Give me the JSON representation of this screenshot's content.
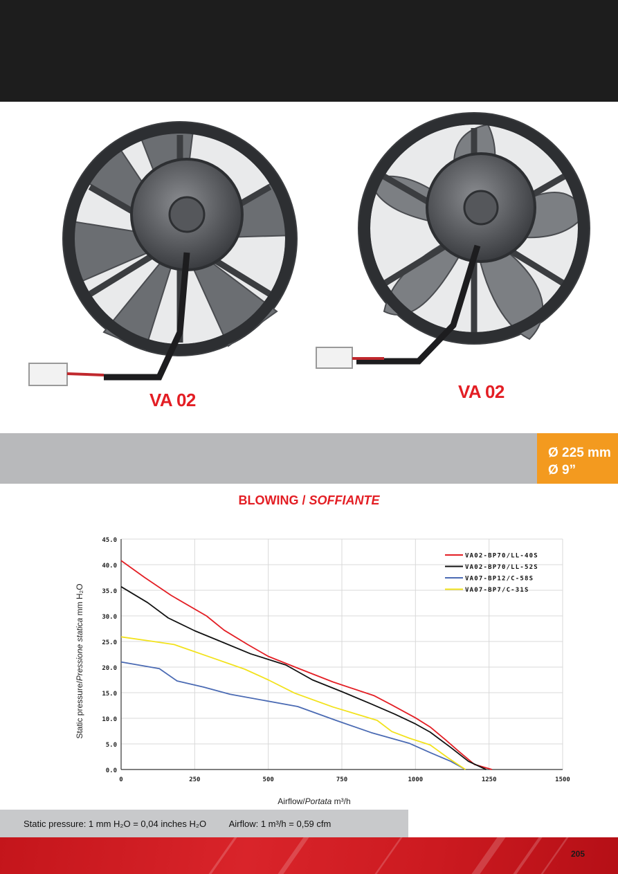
{
  "models": {
    "left": "VA 02",
    "right": "VA 02"
  },
  "size": {
    "mm": "Ø 225 mm",
    "inch": "Ø 9”"
  },
  "section_title": {
    "main": "BLOWING / ",
    "italic": "SOFFIANTE"
  },
  "conversions": {
    "pressure": "Static pressure: 1 mm H₂O = 0,04 inches H₂O",
    "airflow": "Airflow: 1 m³/h = 0,59 cfm"
  },
  "page_number": "205",
  "colors": {
    "red": "#e31e24",
    "black": "#111111",
    "blue": "#4a6ab3",
    "yellow": "#f2e21c",
    "orange": "#f39a1f"
  },
  "chart_data": {
    "type": "line",
    "title": "",
    "xlabel": {
      "main": "Airflow",
      "italic": "Portata",
      "unit": "m³/h"
    },
    "ylabel": {
      "main": "Static pressure",
      "italic": "Pressione statica",
      "unit": "mm H₂O"
    },
    "xlim": [
      0,
      1500
    ],
    "ylim": [
      0,
      45
    ],
    "x_ticks": [
      "0",
      "250",
      "500",
      "750",
      "1000",
      "1250",
      "1500"
    ],
    "y_ticks": [
      "0.0",
      "5.0",
      "10.0",
      "15.0",
      "20.0",
      "25.0",
      "30.0",
      "35.0",
      "40.0",
      "45.0"
    ],
    "grid": true,
    "legend_position": "top-right",
    "series": [
      {
        "name": "VA02-BP70/LL-40S",
        "color": "#e31e24",
        "points": [
          [
            0,
            40.8
          ],
          [
            80,
            37.5
          ],
          [
            170,
            34
          ],
          [
            290,
            30
          ],
          [
            350,
            27.2
          ],
          [
            430,
            24.4
          ],
          [
            500,
            22.1
          ],
          [
            600,
            19.8
          ],
          [
            720,
            17.1
          ],
          [
            860,
            14.4
          ],
          [
            920,
            12.6
          ],
          [
            1000,
            10.1
          ],
          [
            1050,
            8.3
          ],
          [
            1100,
            5.9
          ],
          [
            1150,
            3.4
          ],
          [
            1200,
            1
          ],
          [
            1260,
            0
          ]
        ]
      },
      {
        "name": "VA02-BP70/LL-52S",
        "color": "#111111",
        "points": [
          [
            0,
            35.7
          ],
          [
            90,
            32.6
          ],
          [
            160,
            29.6
          ],
          [
            250,
            27.1
          ],
          [
            330,
            25.2
          ],
          [
            440,
            22.6
          ],
          [
            560,
            20.4
          ],
          [
            650,
            17.5
          ],
          [
            750,
            15.2
          ],
          [
            850,
            12.8
          ],
          [
            930,
            10.8
          ],
          [
            1000,
            8.9
          ],
          [
            1050,
            7.3
          ],
          [
            1120,
            4.3
          ],
          [
            1180,
            1.6
          ],
          [
            1240,
            0
          ]
        ]
      },
      {
        "name": "VA07-BP12/C-58S",
        "color": "#4a6ab3",
        "points": [
          [
            0,
            21
          ],
          [
            130,
            19.7
          ],
          [
            190,
            17.3
          ],
          [
            280,
            16.1
          ],
          [
            370,
            14.7
          ],
          [
            600,
            12.3
          ],
          [
            730,
            9.6
          ],
          [
            850,
            7.2
          ],
          [
            980,
            5.1
          ],
          [
            1050,
            3.3
          ],
          [
            1120,
            1.6
          ],
          [
            1170,
            0
          ]
        ]
      },
      {
        "name": "VA07-BP7/C-31S",
        "color": "#f2e21c",
        "points": [
          [
            0,
            25.9
          ],
          [
            110,
            25
          ],
          [
            180,
            24.4
          ],
          [
            300,
            22
          ],
          [
            420,
            19.6
          ],
          [
            500,
            17.5
          ],
          [
            590,
            14.9
          ],
          [
            720,
            12.2
          ],
          [
            870,
            9.6
          ],
          [
            920,
            7.4
          ],
          [
            980,
            6.1
          ],
          [
            1050,
            4.8
          ],
          [
            1110,
            2.3
          ],
          [
            1170,
            0
          ]
        ]
      }
    ]
  }
}
